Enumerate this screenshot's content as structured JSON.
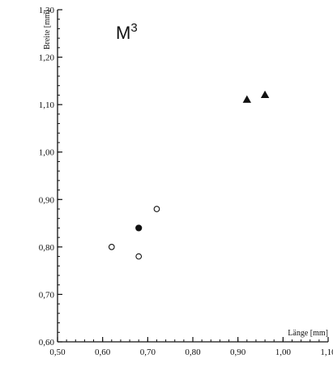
{
  "chart_data": {
    "type": "scatter",
    "title": "M",
    "title_superscript": "3",
    "xlabel": "Länge [mm]",
    "ylabel": "Breite [mm]",
    "xlim": [
      0.5,
      1.1
    ],
    "ylim": [
      0.6,
      1.3
    ],
    "x_ticks": [
      "0,50",
      "0,60",
      "0,70",
      "0,80",
      "0,90",
      "1,00",
      "1,10"
    ],
    "y_ticks": [
      "0,60",
      "0,70",
      "0,80",
      "0,90",
      "1,00",
      "1,10",
      "1,20",
      "1,30"
    ],
    "x_tick_values": [
      0.5,
      0.6,
      0.7,
      0.8,
      0.9,
      1.0,
      1.1
    ],
    "y_tick_values": [
      0.6,
      0.7,
      0.8,
      0.9,
      1.0,
      1.1,
      1.2,
      1.3
    ],
    "x_minor_step": 0.02,
    "y_minor_step": 0.02,
    "grid": false,
    "series": [
      {
        "marker": "open-circle",
        "points": [
          {
            "x": 0.62,
            "y": 0.8
          },
          {
            "x": 0.68,
            "y": 0.78
          },
          {
            "x": 0.72,
            "y": 0.88
          }
        ]
      },
      {
        "marker": "filled-circle",
        "points": [
          {
            "x": 0.68,
            "y": 0.84
          }
        ]
      },
      {
        "marker": "filled-triangle",
        "points": [
          {
            "x": 0.92,
            "y": 1.11
          },
          {
            "x": 0.96,
            "y": 1.12
          }
        ]
      }
    ]
  }
}
